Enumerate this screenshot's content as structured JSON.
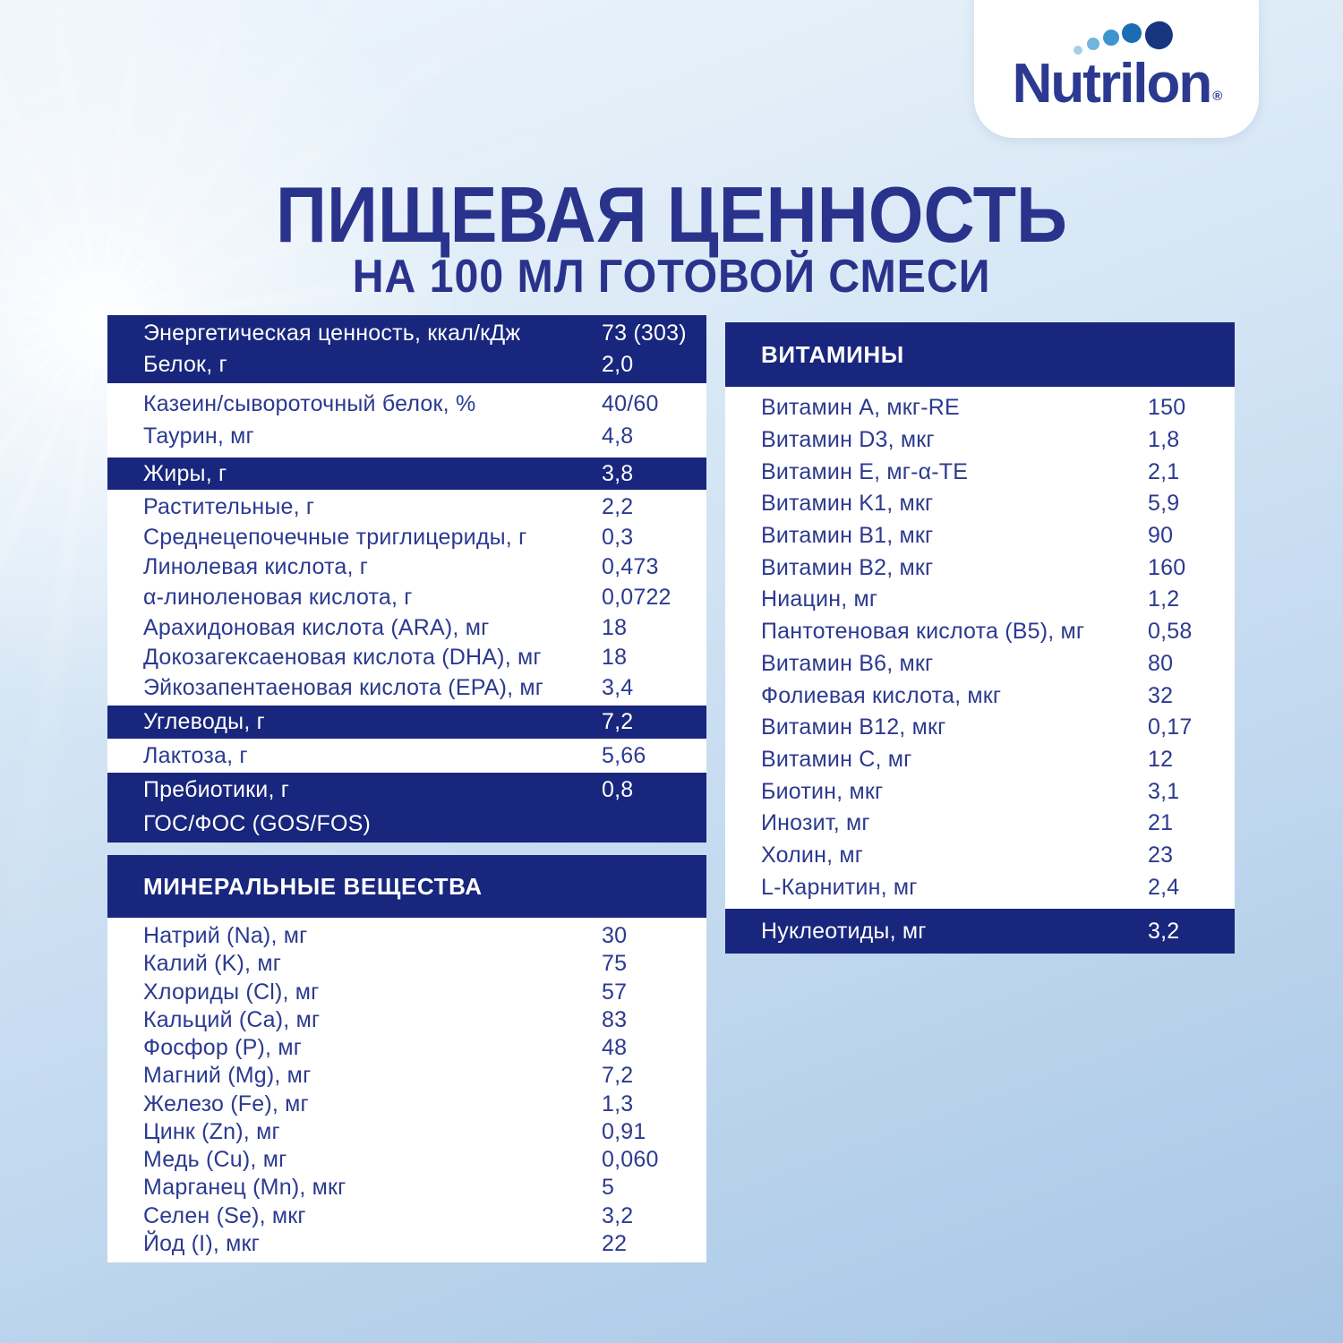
{
  "colors": {
    "navy_band": "#18267D",
    "text_blue": "#2B3A90",
    "title_blue": "#2A338C",
    "background_top": "#EEF5FC",
    "background_bottom": "#A7C6E5",
    "logo_dot_colors": [
      "#A5CFE9",
      "#6FB5DD",
      "#3E95CD",
      "#1C6CB4",
      "#16377F"
    ]
  },
  "logo": {
    "brand": "Nutrilon",
    "reg": "®"
  },
  "title": {
    "line1": "ПИЩЕВАЯ ЦЕННОСТЬ",
    "line2": "НА 100 МЛ ГОТОВОЙ СМЕСИ"
  },
  "left": {
    "energy_protein": [
      {
        "label": "Энергетическая ценность, ккал/кДж",
        "value": "73 (303)"
      },
      {
        "label": "Белок, г",
        "value": "2,0"
      }
    ],
    "casein_taurine": [
      {
        "label": "Казеин/сывороточный белок, %",
        "value": "40/60"
      },
      {
        "label": "Таурин, мг",
        "value": "4,8"
      }
    ],
    "fats_header": {
      "label": "Жиры, г",
      "value": "3,8"
    },
    "fats": [
      {
        "label": "Растительные, г",
        "value": "2,2"
      },
      {
        "label": "Среднецепочечные триглицериды, г",
        "value": "0,3"
      },
      {
        "label": "Линолевая кислота, г",
        "value": "0,473"
      },
      {
        "label": "α-линоленовая кислота, г",
        "value": "0,0722"
      },
      {
        "label": "Арахидоновая кислота (ARA), мг",
        "value": "18"
      },
      {
        "label": "Докозагексаеновая кислота (DHA), мг",
        "value": "18"
      },
      {
        "label": "Эйкозапентаеновая кислота (EPA), мг",
        "value": "3,4"
      }
    ],
    "carbs_header": {
      "label": "Углеводы, г",
      "value": "7,2"
    },
    "lactose": {
      "label": "Лактоза, г",
      "value": "5,66"
    },
    "prebiotics": {
      "label": "Пребиотики, г",
      "label2": "ГОС/ФОС (GOS/FOS)",
      "value": "0,8"
    },
    "minerals": {
      "header": "МИНЕРАЛЬНЫЕ ВЕЩЕСТВА",
      "rows": [
        {
          "label": "Натрий (Na), мг",
          "value": "30"
        },
        {
          "label": "Калий (K), мг",
          "value": "75"
        },
        {
          "label": "Хлориды (Cl), мг",
          "value": "57"
        },
        {
          "label": "Кальций (Ca), мг",
          "value": "83"
        },
        {
          "label": "Фосфор (P), мг",
          "value": "48"
        },
        {
          "label": "Магний (Mg), мг",
          "value": "7,2"
        },
        {
          "label": "Железо (Fe), мг",
          "value": "1,3"
        },
        {
          "label": "Цинк (Zn), мг",
          "value": "0,91"
        },
        {
          "label": "Медь (Cu), мг",
          "value": "0,060"
        },
        {
          "label": "Марганец (Mn), мкг",
          "value": "5"
        },
        {
          "label": "Селен (Se), мкг",
          "value": "3,2"
        },
        {
          "label": "Йод (I), мкг",
          "value": "22"
        }
      ]
    }
  },
  "vitamins": {
    "header": "ВИТАМИНЫ",
    "rows": [
      {
        "label": "Витамин A, мкг-RE",
        "value": "150"
      },
      {
        "label": "Витамин D3, мкг",
        "value": "1,8"
      },
      {
        "label": "Витамин E, мг-α-TE",
        "value": "2,1"
      },
      {
        "label": "Витамин K1, мкг",
        "value": "5,9"
      },
      {
        "label": "Витамин B1, мкг",
        "value": "90"
      },
      {
        "label": "Витамин B2, мкг",
        "value": "160"
      },
      {
        "label": "Ниацин, мг",
        "value": "1,2"
      },
      {
        "label": "Пантотеновая кислота (B5), мг",
        "value": "0,58"
      },
      {
        "label": "Витамин B6, мкг",
        "value": "80"
      },
      {
        "label": "Фолиевая кислота, мкг",
        "value": "32"
      },
      {
        "label": "Витамин B12, мкг",
        "value": "0,17"
      },
      {
        "label": "Витамин C, мг",
        "value": "12"
      },
      {
        "label": "Биотин, мкг",
        "value": "3,1"
      },
      {
        "label": "Инозит, мг",
        "value": "21"
      },
      {
        "label": "Холин, мг",
        "value": "23"
      },
      {
        "label": "L-Карнитин, мг",
        "value": "2,4"
      }
    ],
    "footer": {
      "label": "Нуклеотиды, мг",
      "value": "3,2"
    }
  }
}
